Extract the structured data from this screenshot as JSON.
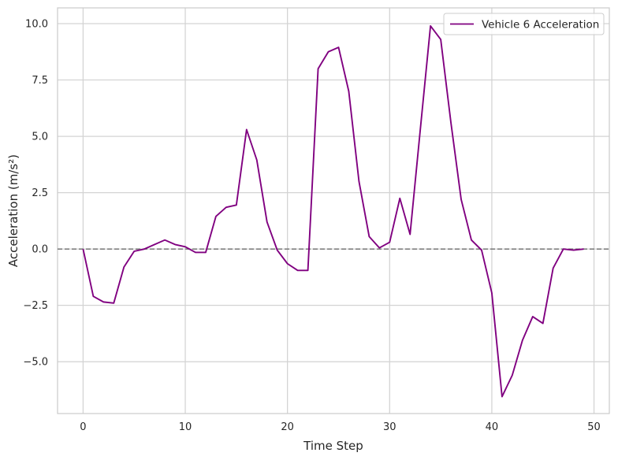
{
  "chart_data": {
    "type": "line",
    "title": "",
    "xlabel": "Time Step",
    "ylabel": "Acceleration (m/s²)",
    "xlim": [
      -2.5,
      51.5
    ],
    "ylim": [
      -7.3,
      10.7
    ],
    "x_ticks": [
      0,
      10,
      20,
      30,
      40,
      50
    ],
    "x_tick_labels": [
      "0",
      "10",
      "20",
      "30",
      "40",
      "50"
    ],
    "y_ticks": [
      -5.0,
      -2.5,
      0.0,
      2.5,
      5.0,
      7.5,
      10.0
    ],
    "y_tick_labels": [
      "−5.0",
      "−2.5",
      "0.0",
      "2.5",
      "5.0",
      "7.5",
      "10.0"
    ],
    "grid": true,
    "legend_position": "top-right",
    "reference_line": {
      "y": 0,
      "style": "dashed",
      "color": "#808080"
    },
    "series": [
      {
        "name": "Vehicle 6 Acceleration",
        "color": "#800080",
        "x": [
          0,
          1,
          2,
          3,
          4,
          5,
          6,
          7,
          8,
          9,
          10,
          11,
          12,
          13,
          14,
          15,
          16,
          17,
          18,
          19,
          20,
          21,
          22,
          23,
          24,
          25,
          26,
          27,
          28,
          29,
          30,
          31,
          32,
          33,
          34,
          35,
          36,
          37,
          38,
          39,
          40,
          41,
          42,
          43,
          44,
          45,
          46,
          47,
          48,
          49
        ],
        "values": [
          0.0,
          -2.1,
          -2.35,
          -2.4,
          -0.8,
          -0.1,
          0.0,
          0.2,
          0.4,
          0.2,
          0.1,
          -0.15,
          -0.15,
          1.45,
          1.85,
          1.95,
          5.3,
          3.95,
          1.2,
          -0.05,
          -0.65,
          -0.95,
          -0.95,
          8.0,
          8.75,
          8.95,
          7.0,
          3.0,
          0.55,
          0.05,
          0.3,
          2.25,
          0.65,
          5.3,
          9.9,
          9.3,
          5.6,
          2.2,
          0.4,
          -0.05,
          -1.95,
          -6.55,
          -5.6,
          -4.05,
          -3.0,
          -3.3,
          -0.85,
          0.0,
          -0.05,
          0.0
        ]
      }
    ]
  }
}
